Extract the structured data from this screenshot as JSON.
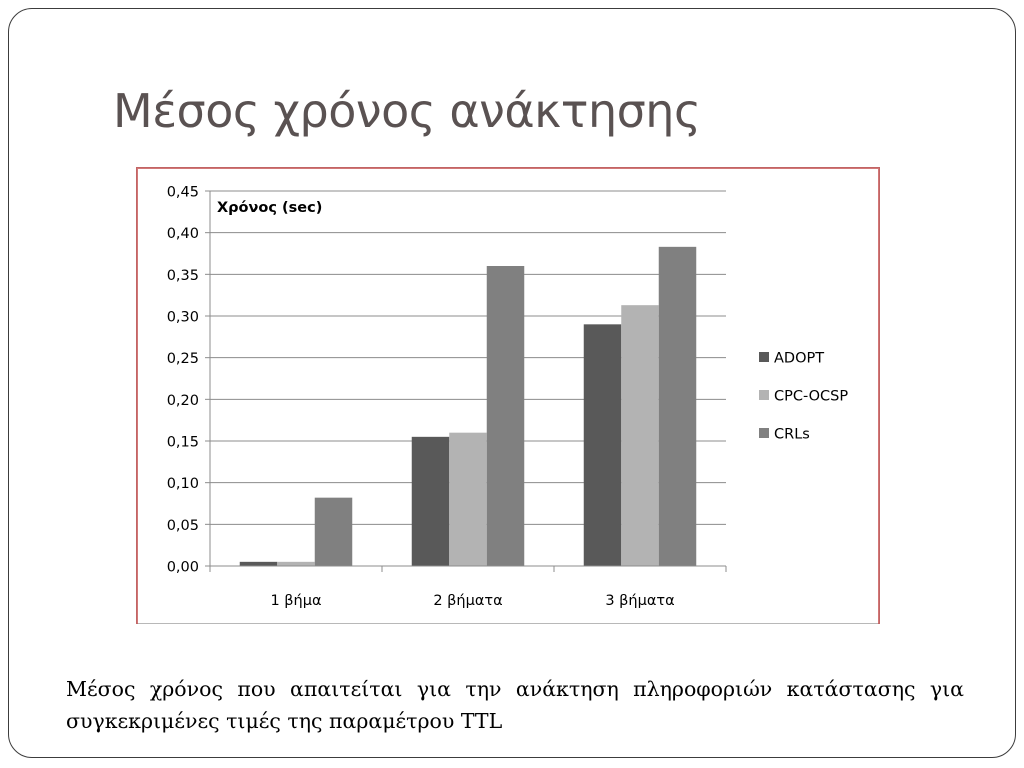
{
  "slide": {
    "title": "Μέσος χρόνος ανάκτησης",
    "caption": "Μέσος χρόνος που απαιτείται για την ανάκτηση πληροφοριών κατάστασης για συγκεκριμένες τιμές της παραμέτρου TTL"
  },
  "chart_data": {
    "type": "bar",
    "title": "",
    "xlabel": "",
    "ylabel": "Χρόνος (sec)",
    "categories": [
      "1 βήμα",
      "2 βήματα",
      "3 βήματα"
    ],
    "series": [
      {
        "name": "ADOPT",
        "color": "#595959",
        "values": [
          0.005,
          0.155,
          0.29
        ]
      },
      {
        "name": "CPC-OCSP",
        "color": "#b3b3b3",
        "values": [
          0.005,
          0.16,
          0.313
        ]
      },
      {
        "name": "CRLs",
        "color": "#808080",
        "values": [
          0.082,
          0.36,
          0.383
        ]
      }
    ],
    "ylim": [
      0,
      0.45
    ],
    "yticks": [
      "0,00",
      "0,05",
      "0,10",
      "0,15",
      "0,20",
      "0,25",
      "0,30",
      "0,35",
      "0,40",
      "0,45"
    ],
    "grid": true,
    "legend_position": "right"
  }
}
